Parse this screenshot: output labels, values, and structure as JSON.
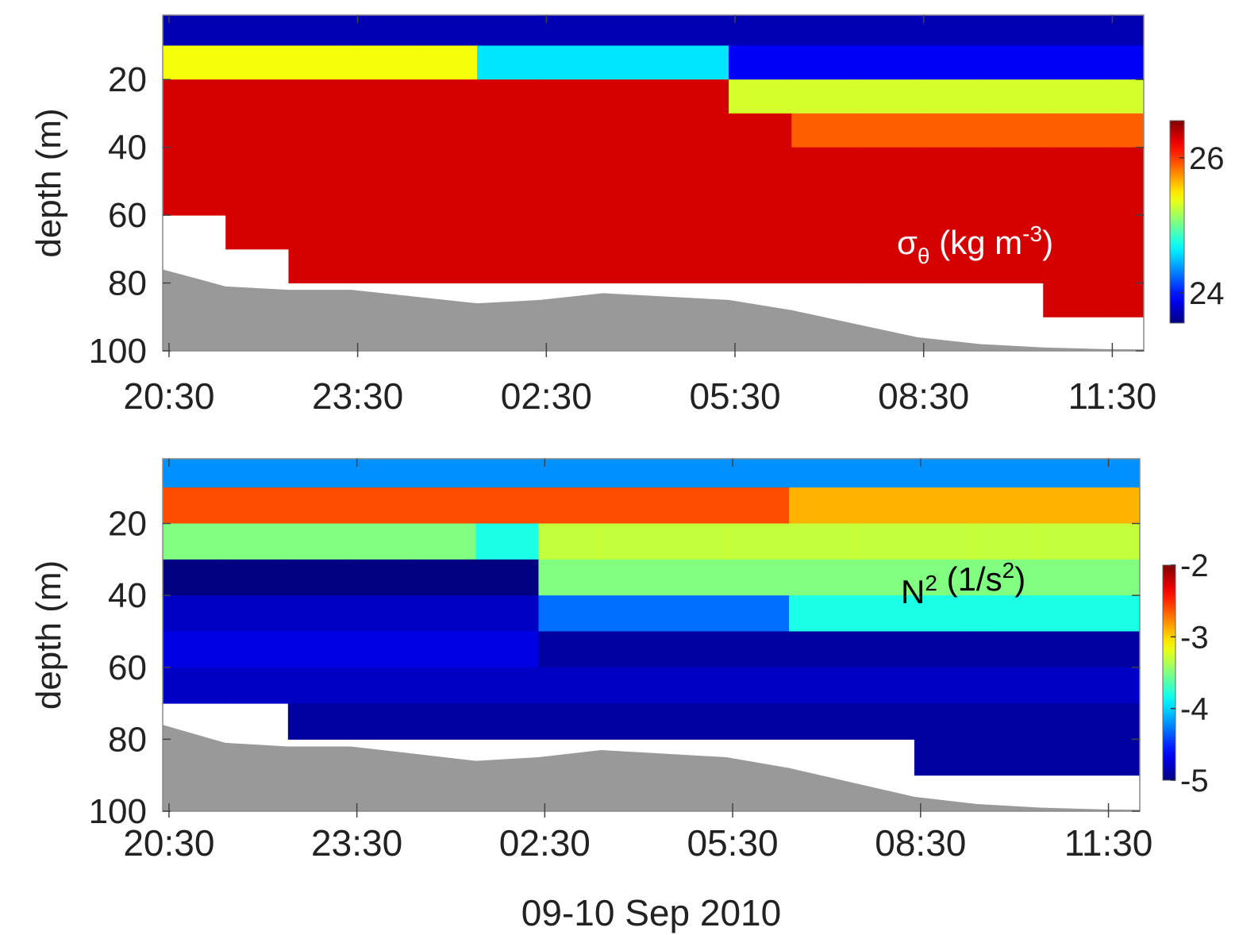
{
  "chart_data": [
    {
      "type": "heatmap",
      "ylabel": "depth (m)",
      "annotation_parts": [
        "σ",
        "θ",
        " (kg m",
        "-3",
        ")"
      ],
      "annotation_color": "#ffffff",
      "xlim": [
        20.4,
        36.0
      ],
      "ylim": [
        1,
        100
      ],
      "y_inverted": true,
      "colormap": "jet",
      "xticks": [
        {
          "value": 20.5,
          "label": "20:30"
        },
        {
          "value": 23.5,
          "label": "23:30"
        },
        {
          "value": 26.5,
          "label": "02:30"
        },
        {
          "value": 29.5,
          "label": "05:30"
        },
        {
          "value": 32.5,
          "label": "08:30"
        },
        {
          "value": 35.5,
          "label": "11:30"
        }
      ],
      "yticks": [
        20,
        40,
        60,
        80,
        100
      ],
      "clim": [
        23.55,
        26.55
      ],
      "cticks": [
        24,
        26
      ],
      "x_edges": [
        20.4,
        21.4,
        22.4,
        23.4,
        24.4,
        25.4,
        26.4,
        27.4,
        28.4,
        29.4,
        30.4,
        31.4,
        32.4,
        33.4,
        34.4,
        35.4,
        36.0
      ],
      "y_edges": [
        1,
        10,
        20,
        30,
        40,
        50,
        60,
        70,
        80,
        90,
        100
      ],
      "z": [
        [
          23.7,
          23.7,
          23.7,
          23.7,
          23.7,
          23.7,
          23.7,
          23.7,
          23.7,
          23.7,
          23.7,
          23.7,
          23.7,
          23.7,
          23.7,
          23.7
        ],
        [
          25.4,
          25.4,
          25.4,
          25.4,
          25.4,
          24.6,
          24.6,
          24.6,
          24.6,
          23.9,
          23.9,
          23.9,
          23.9,
          23.9,
          23.9,
          23.9
        ],
        [
          26.3,
          26.3,
          26.3,
          26.3,
          26.3,
          26.3,
          26.3,
          26.3,
          26.3,
          25.3,
          25.3,
          25.3,
          25.3,
          25.3,
          25.3,
          25.3
        ],
        [
          26.3,
          26.3,
          26.3,
          26.3,
          26.3,
          26.3,
          26.3,
          26.3,
          26.3,
          26.3,
          25.9,
          25.9,
          25.9,
          25.9,
          25.9,
          25.9
        ],
        [
          26.3,
          26.3,
          26.3,
          26.3,
          26.3,
          26.3,
          26.3,
          26.3,
          26.3,
          26.3,
          26.3,
          26.3,
          26.3,
          26.3,
          26.3,
          26.3
        ],
        [
          26.3,
          26.3,
          26.3,
          26.3,
          26.3,
          26.3,
          26.3,
          26.3,
          26.3,
          26.3,
          26.3,
          26.3,
          26.3,
          26.3,
          26.3,
          26.3
        ],
        [
          null,
          26.3,
          26.3,
          26.3,
          26.3,
          26.3,
          26.3,
          26.3,
          26.3,
          26.3,
          26.3,
          26.3,
          26.3,
          26.3,
          26.3,
          26.3
        ],
        [
          null,
          null,
          26.3,
          26.3,
          26.3,
          26.3,
          26.3,
          26.3,
          26.3,
          26.3,
          26.3,
          26.3,
          26.3,
          26.3,
          26.3,
          26.3
        ],
        [
          null,
          null,
          null,
          null,
          null,
          null,
          null,
          null,
          null,
          null,
          null,
          null,
          null,
          null,
          26.3,
          26.3
        ],
        [
          null,
          null,
          null,
          null,
          null,
          null,
          null,
          null,
          null,
          null,
          null,
          null,
          null,
          null,
          null,
          null
        ]
      ],
      "seafloor": {
        "color": "#999999",
        "x": [
          20.4,
          21.4,
          22.4,
          23.4,
          24.4,
          25.4,
          26.4,
          27.4,
          28.4,
          29.4,
          30.4,
          31.4,
          32.4,
          33.4,
          34.4,
          35.4,
          36.0
        ],
        "values": [
          76,
          81,
          82,
          82,
          84,
          86,
          85,
          83,
          84,
          85,
          88,
          92,
          96,
          98,
          99,
          99.5,
          99.6
        ]
      }
    },
    {
      "type": "heatmap",
      "ylabel": "depth (m)",
      "xlabel": "09-10 Sep 2010",
      "annotation_parts": [
        "N",
        "",
        " (1/s",
        "2",
        ")",
        "2"
      ],
      "annotation_color": "#000000",
      "xlim": [
        20.4,
        36.0
      ],
      "ylim": [
        2,
        100
      ],
      "y_inverted": true,
      "colormap": "jet",
      "xticks": [
        {
          "value": 20.5,
          "label": "20:30"
        },
        {
          "value": 23.5,
          "label": "23:30"
        },
        {
          "value": 26.5,
          "label": "02:30"
        },
        {
          "value": 29.5,
          "label": "05:30"
        },
        {
          "value": 32.5,
          "label": "08:30"
        },
        {
          "value": 35.5,
          "label": "11:30"
        }
      ],
      "yticks": [
        20,
        40,
        60,
        80,
        100
      ],
      "clim": [
        -5,
        -2
      ],
      "cticks": [
        -2,
        -3,
        -4,
        -5
      ],
      "x_edges": [
        20.4,
        21.4,
        22.4,
        23.4,
        24.4,
        25.4,
        26.4,
        27.4,
        28.4,
        29.4,
        30.4,
        31.4,
        32.4,
        33.4,
        34.4,
        35.4,
        36.0
      ],
      "y_edges": [
        2,
        10,
        20,
        30,
        40,
        50,
        60,
        70,
        80,
        90,
        100
      ],
      "z": [
        [
          -4.2,
          -4.2,
          -4.2,
          -4.2,
          -4.2,
          -4.2,
          -4.2,
          -4.2,
          -4.2,
          -4.2,
          -4.2,
          -4.2,
          -4.2,
          -4.2,
          -4.2,
          -4.2
        ],
        [
          -2.6,
          -2.6,
          -2.6,
          -2.6,
          -2.6,
          -2.6,
          -2.6,
          -2.6,
          -2.6,
          -2.6,
          -2.9,
          -2.9,
          -2.9,
          -2.9,
          -2.9,
          -2.9
        ],
        [
          -3.5,
          -3.5,
          -3.5,
          -3.5,
          -3.5,
          -3.8,
          -3.3,
          -3.3,
          -3.3,
          -3.3,
          -3.3,
          -3.3,
          -3.3,
          -3.3,
          -3.3,
          -3.3
        ],
        [
          -5,
          -5,
          -5,
          -5,
          -5,
          -5,
          -3.5,
          -3.5,
          -3.5,
          -3.5,
          -3.5,
          -3.5,
          -3.5,
          -3.5,
          -3.5,
          -3.5
        ],
        [
          -4.8,
          -4.8,
          -4.8,
          -4.8,
          -4.8,
          -4.8,
          -4.3,
          -4.3,
          -4.3,
          -4.3,
          -3.8,
          -3.8,
          -3.8,
          -3.8,
          -3.8,
          -3.8
        ],
        [
          -4.7,
          -4.7,
          -4.7,
          -4.7,
          -4.7,
          -4.7,
          -4.9,
          -4.9,
          -4.9,
          -4.9,
          -4.9,
          -4.9,
          -4.9,
          -4.9,
          -4.9,
          -4.9
        ],
        [
          -4.8,
          -4.8,
          -4.8,
          -4.8,
          -4.8,
          -4.8,
          -4.8,
          -4.8,
          -4.8,
          -4.8,
          -4.8,
          -4.8,
          -4.8,
          -4.8,
          -4.8,
          -4.8
        ],
        [
          null,
          null,
          -4.9,
          -4.9,
          -4.9,
          -4.9,
          -4.9,
          -4.9,
          -4.9,
          -4.9,
          -4.9,
          -4.9,
          -4.9,
          -4.9,
          -4.9,
          -4.9
        ],
        [
          null,
          null,
          null,
          null,
          null,
          null,
          null,
          null,
          null,
          null,
          null,
          null,
          -4.9,
          -4.9,
          -4.9,
          -4.9
        ],
        [
          null,
          null,
          null,
          null,
          null,
          null,
          null,
          null,
          null,
          null,
          null,
          null,
          null,
          null,
          null,
          null
        ]
      ],
      "seafloor": {
        "color": "#999999",
        "x": [
          20.4,
          21.4,
          22.4,
          23.4,
          24.4,
          25.4,
          26.4,
          27.4,
          28.4,
          29.4,
          30.4,
          31.4,
          32.4,
          33.4,
          34.4,
          35.4,
          36.0
        ],
        "values": [
          76,
          81,
          82,
          82,
          84,
          86,
          85,
          83,
          84,
          85,
          88,
          92,
          96,
          98,
          99,
          99.5,
          99.6
        ]
      }
    }
  ]
}
